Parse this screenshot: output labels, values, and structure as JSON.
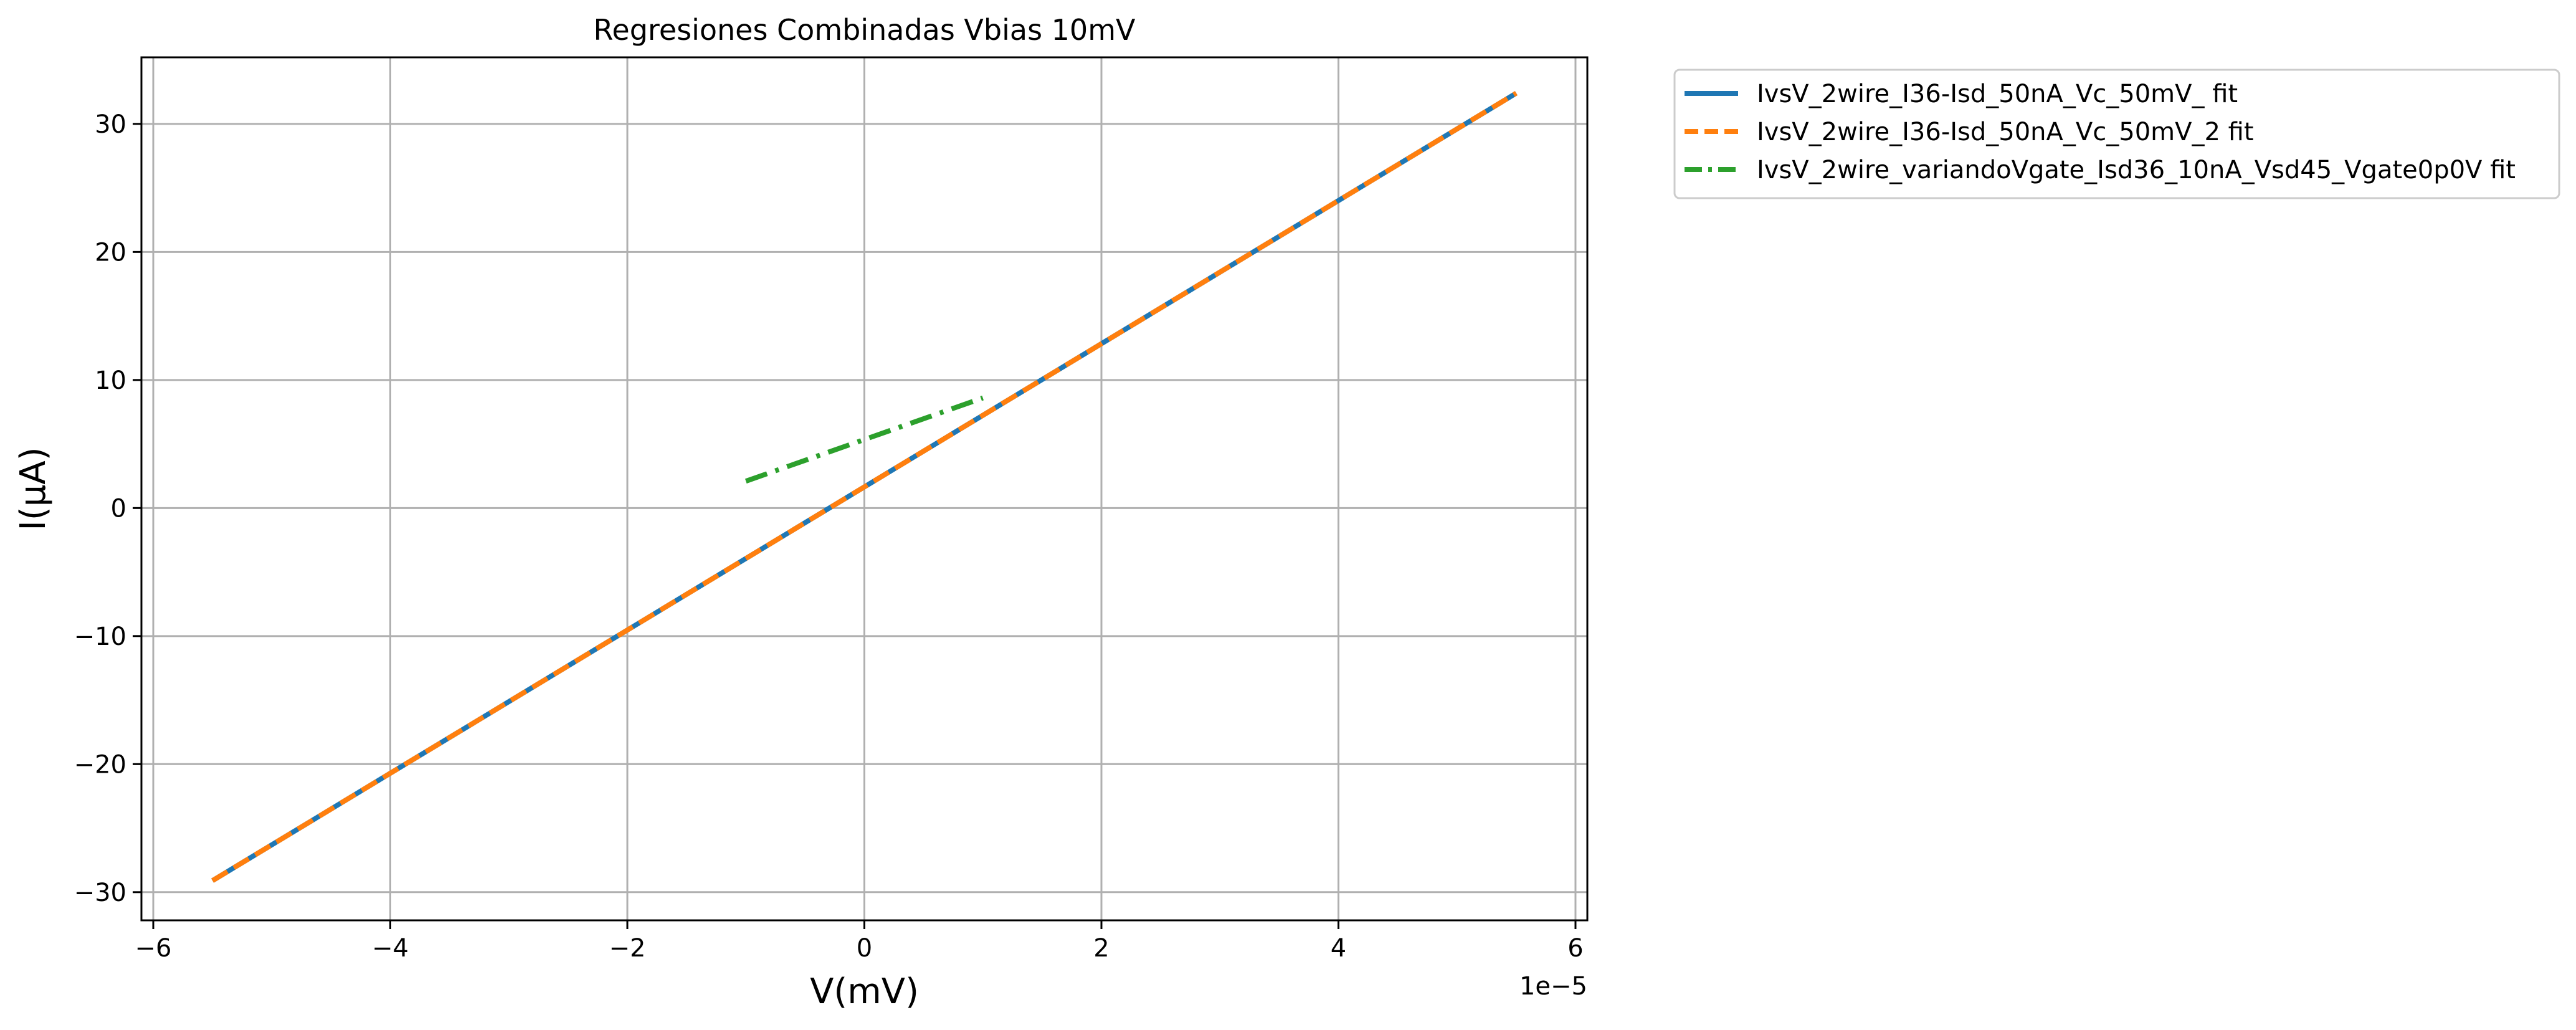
{
  "chart_data": {
    "type": "line",
    "title": "Regresiones Combinadas Vbias 10mV",
    "xlabel": "V(mV)",
    "ylabel": "I(μA)",
    "x_offset_text": "1e−5",
    "xlim": [
      -6.1,
      6.1
    ],
    "ylim": [
      -32.2,
      35.2
    ],
    "xticks": [
      -6,
      -4,
      -2,
      0,
      2,
      4,
      6
    ],
    "xtick_labels": [
      "−6",
      "−4",
      "−2",
      "0",
      "2",
      "4",
      "6"
    ],
    "yticks": [
      -30,
      -20,
      -10,
      0,
      10,
      20,
      30
    ],
    "ytick_labels": [
      "−30",
      "−20",
      "−10",
      "0",
      "10",
      "20",
      "30"
    ],
    "grid": true,
    "legend_position": "outside-upper-right",
    "series": [
      {
        "name": "IvsV_2wire_I36-Isd_50nA_Vc_50mV_ fit",
        "color": "#1f77b4",
        "style": "solid",
        "x": [
          -5.5,
          5.5
        ],
        "y": [
          -29.1,
          32.4
        ]
      },
      {
        "name": "IvsV_2wire_I36-Isd_50nA_Vc_50mV_2 fit",
        "color": "#ff7f0e",
        "style": "dashed",
        "x": [
          -5.5,
          5.5
        ],
        "y": [
          -29.1,
          32.4
        ]
      },
      {
        "name": "IvsV_2wire_variandoVgate_Isd36_10nA_Vsd45_Vgate0p0V fit",
        "color": "#2ca02c",
        "style": "dashdot",
        "x": [
          -1.0,
          1.0
        ],
        "y": [
          2.1,
          8.6
        ]
      }
    ]
  }
}
